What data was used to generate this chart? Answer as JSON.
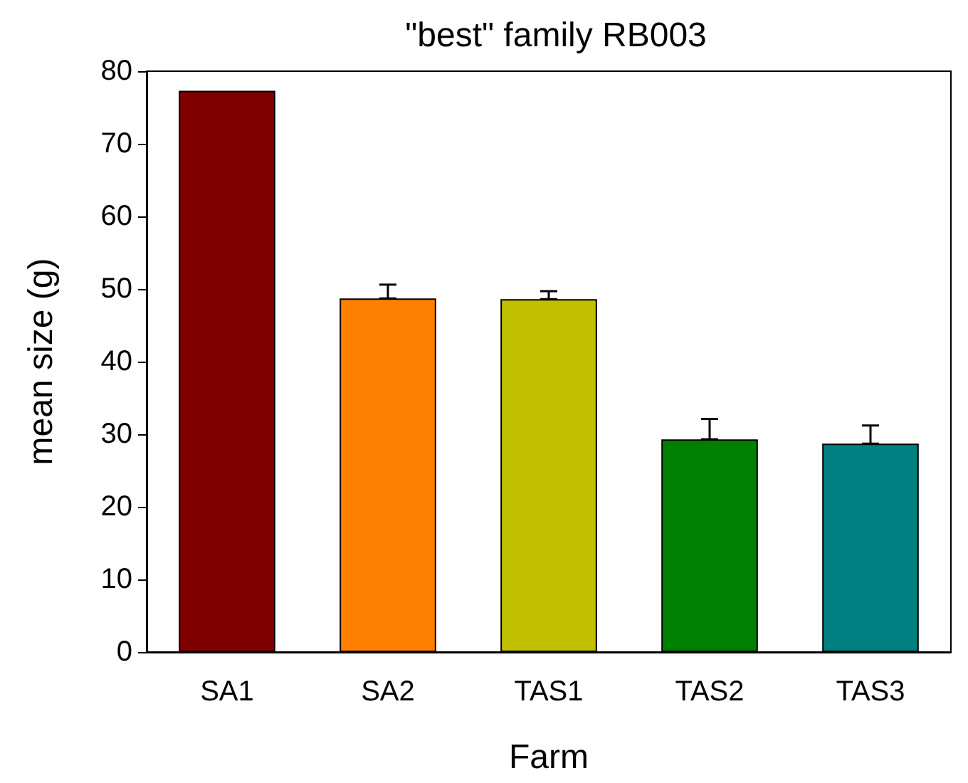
{
  "chart_data": {
    "type": "bar",
    "title": "\"best\" family RB003",
    "xlabel": "Farm",
    "ylabel": "mean size (g)",
    "categories": [
      "SA1",
      "SA2",
      "TAS1",
      "TAS2",
      "TAS3"
    ],
    "values": [
      77.3,
      48.7,
      48.6,
      29.3,
      28.7
    ],
    "colors": [
      "#800000",
      "#ff8000",
      "#c0c000",
      "#008000",
      "#008080"
    ],
    "errors": [
      null,
      [
        48.7,
        50.6
      ],
      [
        48.6,
        49.7
      ],
      [
        29.3,
        32.1
      ],
      [
        28.7,
        31.2
      ]
    ],
    "ylim": [
      0,
      80
    ],
    "yticks": [
      0,
      10,
      20,
      30,
      40,
      50,
      60,
      70,
      80
    ],
    "grid": false
  }
}
